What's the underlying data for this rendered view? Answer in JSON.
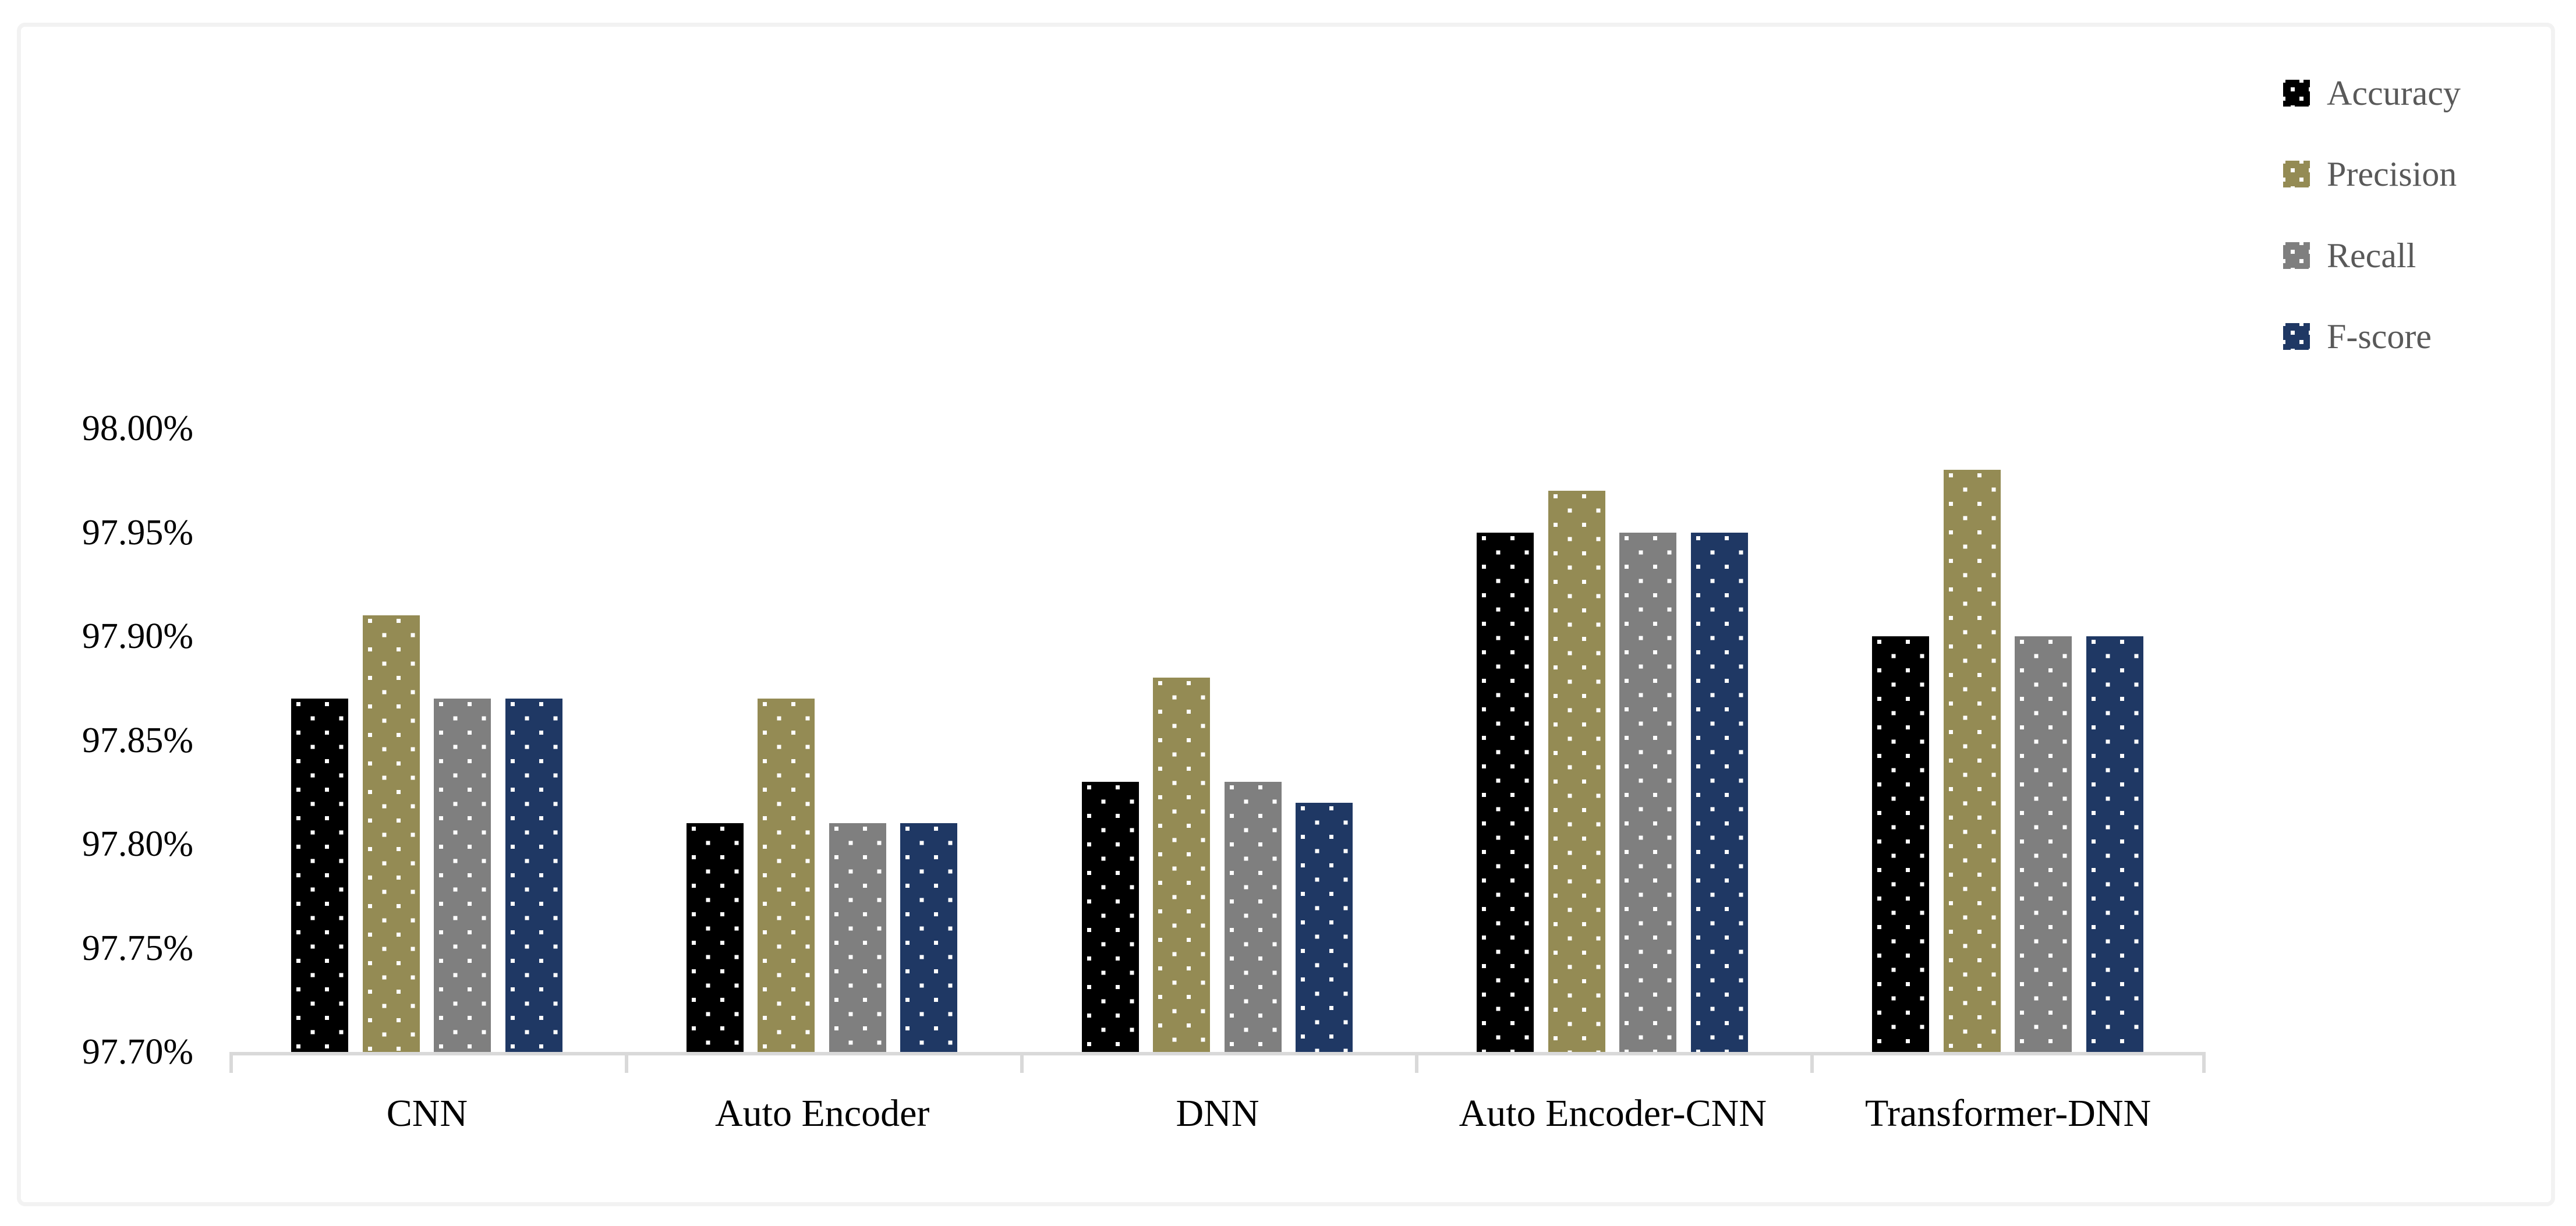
{
  "chart_data": {
    "type": "bar",
    "title": "",
    "xlabel": "",
    "ylabel": "",
    "categories": [
      "CNN",
      "Auto Encoder",
      "DNN",
      "Auto Encoder-CNN",
      "Transformer-DNN"
    ],
    "series": [
      {
        "name": "Accuracy",
        "color": "#000000",
        "values": [
          97.87,
          97.81,
          97.83,
          97.95,
          97.9
        ]
      },
      {
        "name": "Precision",
        "color": "#948B54",
        "values": [
          97.91,
          97.87,
          97.88,
          97.97,
          97.98
        ]
      },
      {
        "name": "Recall",
        "color": "#7F7F7F",
        "values": [
          97.87,
          97.81,
          97.83,
          97.95,
          97.9
        ]
      },
      {
        "name": "F-score",
        "color": "#1F3864",
        "values": [
          97.87,
          97.81,
          97.82,
          97.95,
          97.9
        ]
      }
    ],
    "y_axis": {
      "min": 97.7,
      "max": 98.0,
      "tick_step": 0.05,
      "ticks": [
        {
          "label": "98.00%",
          "value": 98.0
        },
        {
          "label": "97.95%",
          "value": 97.95
        },
        {
          "label": "97.90%",
          "value": 97.9
        },
        {
          "label": "97.85%",
          "value": 97.85
        },
        {
          "label": "97.80%",
          "value": 97.8
        },
        {
          "label": "97.75%",
          "value": 97.75
        },
        {
          "label": "97.70%",
          "value": 97.7
        }
      ]
    },
    "legend": {
      "position": "top-right",
      "entries": [
        "Accuracy",
        "Precision",
        "Recall",
        "F-score"
      ]
    },
    "style": {
      "bar_pattern": "white-square-dots",
      "axis_color": "#D9D9D9",
      "frame_color": "#F2F2F2",
      "tick_text_color": "#000000",
      "category_text_color": "#000000",
      "legend_text_color": "#595959",
      "grid": "off"
    }
  }
}
